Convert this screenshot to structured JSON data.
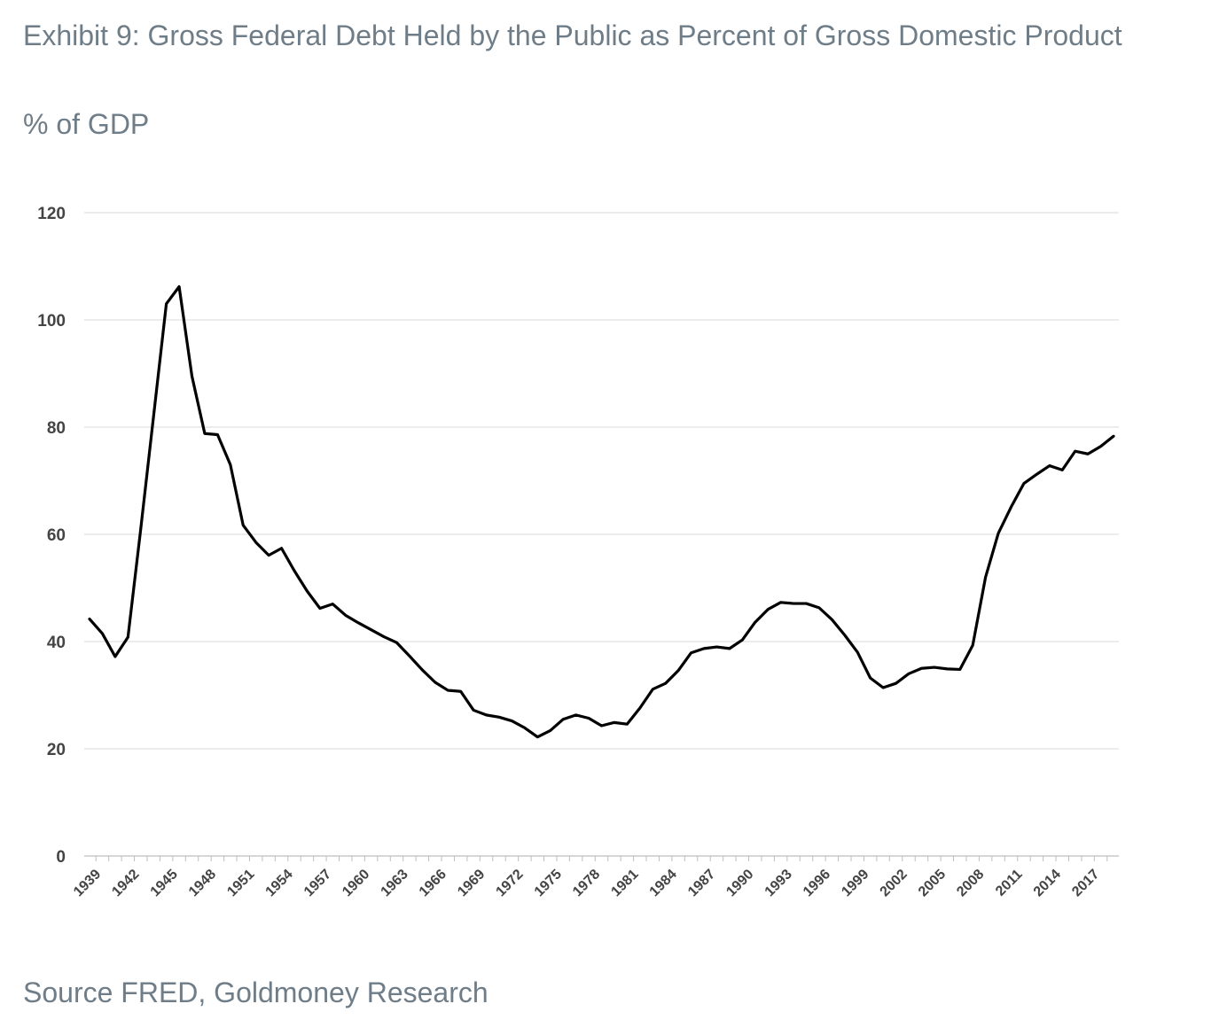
{
  "header": {
    "title": "Exhibit 9: Gross Federal Debt Held by the Public as Percent of Gross Domestic Product",
    "unit_label": "% of GDP"
  },
  "footer": {
    "source": "Source FRED, Goldmoney Research"
  },
  "chart_data": {
    "type": "line",
    "title": "Exhibit 9: Gross Federal Debt Held by the Public as Percent of Gross Domestic Product",
    "xlabel": "",
    "ylabel": "% of GDP",
    "ylim": [
      0,
      120
    ],
    "yticks": [
      "0",
      "20",
      "40",
      "60",
      "80",
      "100",
      "120"
    ],
    "xticks": [
      "1939",
      "1942",
      "1945",
      "1948",
      "1951",
      "1954",
      "1957",
      "1960",
      "1963",
      "1966",
      "1969",
      "1972",
      "1975",
      "1978",
      "1981",
      "1984",
      "1987",
      "1990",
      "1993",
      "1996",
      "1999",
      "2002",
      "2005",
      "2008",
      "2011",
      "2014",
      "2017"
    ],
    "grid": true,
    "line_color": "#000000",
    "x": [
      1939,
      1940,
      1941,
      1942,
      1943,
      1944,
      1945,
      1946,
      1947,
      1948,
      1949,
      1950,
      1951,
      1952,
      1953,
      1954,
      1955,
      1956,
      1957,
      1958,
      1959,
      1960,
      1961,
      1962,
      1963,
      1964,
      1965,
      1966,
      1967,
      1968,
      1969,
      1970,
      1971,
      1972,
      1973,
      1974,
      1975,
      1976,
      1977,
      1978,
      1979,
      1980,
      1981,
      1982,
      1983,
      1984,
      1985,
      1986,
      1987,
      1988,
      1989,
      1990,
      1991,
      1992,
      1993,
      1994,
      1995,
      1996,
      1997,
      1998,
      1999,
      2000,
      2001,
      2002,
      2003,
      2004,
      2005,
      2006,
      2007,
      2008,
      2009,
      2010,
      2011,
      2012,
      2013,
      2014,
      2015,
      2016,
      2017,
      2018,
      2019
    ],
    "series": [
      {
        "values": [
          44.2,
          41.5,
          37.2,
          40.8,
          61.0,
          82.0,
          103.0,
          106.2,
          89.5,
          78.8,
          78.6,
          73.0,
          61.7,
          58.5,
          56.1,
          57.4,
          53.2,
          49.4,
          46.2,
          47.0,
          44.9,
          43.5,
          42.2,
          40.9,
          39.8,
          37.3,
          34.7,
          32.4,
          30.9,
          30.7,
          27.2,
          26.3,
          25.9,
          25.2,
          23.9,
          22.2,
          23.4,
          25.5,
          26.3,
          25.7,
          24.3,
          24.9,
          24.6,
          27.6,
          31.1,
          32.2,
          34.6,
          37.9,
          38.7,
          39.0,
          38.7,
          40.3,
          43.6,
          46.0,
          47.3,
          47.1,
          47.1,
          46.3,
          44.1,
          41.2,
          38.0,
          33.2,
          31.4,
          32.2,
          34.0,
          35.0,
          35.2,
          34.9,
          34.8,
          39.3,
          52.0,
          60.2,
          65.1,
          69.5,
          71.2,
          72.8,
          72.0,
          75.5,
          75.0,
          76.4,
          78.3
        ]
      }
    ]
  }
}
